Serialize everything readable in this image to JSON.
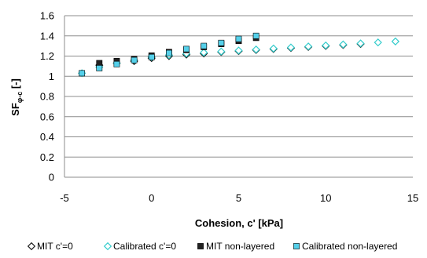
{
  "chart_data": {
    "type": "scatter",
    "xlabel": "Cohesion, c' [kPa]",
    "ylabel_main": "SF",
    "ylabel_sub": "φ-c",
    "ylabel_unit": " [-]",
    "xlim": [
      -5,
      15
    ],
    "ylim": [
      0,
      1.6
    ],
    "x_ticks": [
      -5,
      0,
      5,
      10,
      15
    ],
    "y_ticks": [
      0,
      0.2,
      0.4,
      0.6,
      0.8,
      1,
      1.2,
      1.4,
      1.6
    ],
    "y_tick_labels": [
      "0",
      "0.2",
      "0.4",
      "0.6",
      "0.8",
      "1",
      "1.2",
      "1.4",
      "1.6"
    ],
    "grid": "horizontal",
    "legend_position": "bottom",
    "series": [
      {
        "name": "MIT c'=0",
        "marker": "diamond-open",
        "color": "#1a1a1a",
        "points": [
          [
            -3,
            1.11
          ],
          [
            -2,
            1.13
          ],
          [
            -1,
            1.15
          ],
          [
            0,
            1.18
          ],
          [
            1,
            1.2
          ],
          [
            2,
            1.215
          ],
          [
            3,
            1.225
          ],
          [
            4,
            1.24
          ],
          [
            5,
            1.25
          ],
          [
            6,
            1.26
          ],
          [
            7,
            1.27
          ],
          [
            8,
            1.28
          ],
          [
            9,
            1.29
          ],
          [
            10,
            1.3
          ],
          [
            11,
            1.31
          ],
          [
            12,
            1.32
          ]
        ]
      },
      {
        "name": "Calibrated c'=0",
        "marker": "diamond-open",
        "color": "#33cccc",
        "points": [
          [
            -4,
            1.03
          ],
          [
            -3,
            1.09
          ],
          [
            -2,
            1.13
          ],
          [
            -1,
            1.16
          ],
          [
            0,
            1.19
          ],
          [
            1,
            1.21
          ],
          [
            2,
            1.225
          ],
          [
            3,
            1.235
          ],
          [
            4,
            1.245
          ],
          [
            5,
            1.255
          ],
          [
            6,
            1.265
          ],
          [
            7,
            1.275
          ],
          [
            8,
            1.285
          ],
          [
            9,
            1.295
          ],
          [
            10,
            1.305
          ],
          [
            11,
            1.315
          ],
          [
            12,
            1.325
          ],
          [
            13,
            1.335
          ],
          [
            14,
            1.345
          ]
        ]
      },
      {
        "name": "MIT non-layered",
        "marker": "square-filled",
        "color": "#222222",
        "points": [
          [
            -3,
            1.13
          ],
          [
            -2,
            1.15
          ],
          [
            -1,
            1.17
          ],
          [
            0,
            1.205
          ],
          [
            1,
            1.24
          ],
          [
            2,
            1.26
          ],
          [
            3,
            1.29
          ],
          [
            4,
            1.32
          ],
          [
            5,
            1.35
          ],
          [
            6,
            1.38
          ]
        ]
      },
      {
        "name": "Calibrated non-layered",
        "marker": "square-filled",
        "color": "#55d0ea",
        "points": [
          [
            -4,
            1.03
          ],
          [
            -3,
            1.08
          ],
          [
            -2,
            1.12
          ],
          [
            -1,
            1.16
          ],
          [
            0,
            1.19
          ],
          [
            1,
            1.23
          ],
          [
            2,
            1.27
          ],
          [
            3,
            1.3
          ],
          [
            4,
            1.33
          ],
          [
            5,
            1.37
          ],
          [
            6,
            1.4
          ]
        ]
      }
    ]
  }
}
